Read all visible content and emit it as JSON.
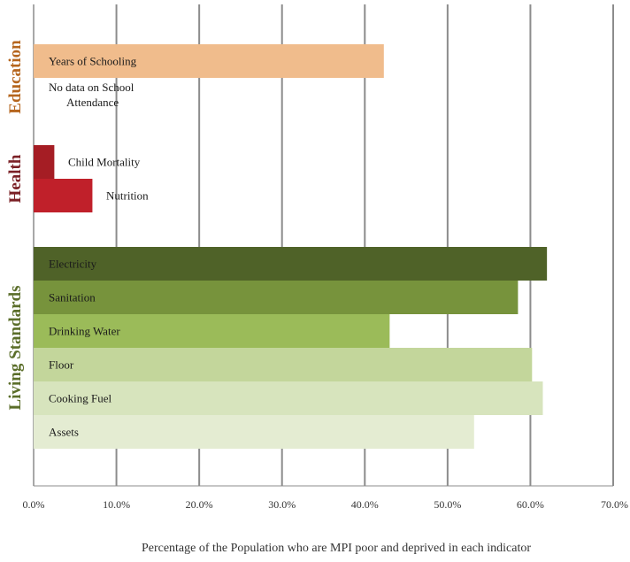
{
  "chart_data": {
    "type": "bar",
    "orientation": "horizontal",
    "xlabel": "Percentage of the Population who are MPI poor and deprived in each indicator",
    "xlim": [
      0,
      70
    ],
    "x_ticks": [
      "0.0%",
      "10.0%",
      "20.0%",
      "30.0%",
      "40.0%",
      "50.0%",
      "60.0%",
      "70.0%"
    ],
    "grid": "vertical",
    "groups": [
      {
        "name": "Education",
        "color": "#b5651d",
        "bars": [
          {
            "label": "Years of Schooling",
            "value": 42.3,
            "color": "#f0bc8c"
          },
          {
            "label": "No data on School Attendance",
            "value": null,
            "color": null
          }
        ]
      },
      {
        "name": "Health",
        "color": "#7b2026",
        "bars": [
          {
            "label": "Child Mortality",
            "value": 2.5,
            "color": "#a51d24"
          },
          {
            "label": "Nutrition",
            "value": 7.1,
            "color": "#c0202a"
          }
        ]
      },
      {
        "name": "Living Standards",
        "color": "#5b6e2a",
        "bars": [
          {
            "label": "Electricity",
            "value": 62.0,
            "color": "#4f6228"
          },
          {
            "label": "Sanitation",
            "value": 58.5,
            "color": "#77933c"
          },
          {
            "label": "Drinking Water",
            "value": 43.0,
            "color": "#9bbb59"
          },
          {
            "label": "Floor",
            "value": 60.2,
            "color": "#c3d69b"
          },
          {
            "label": "Cooking Fuel",
            "value": 61.5,
            "color": "#d7e4bd"
          },
          {
            "label": "Assets",
            "value": 53.2,
            "color": "#e4ecd2"
          }
        ]
      }
    ]
  }
}
